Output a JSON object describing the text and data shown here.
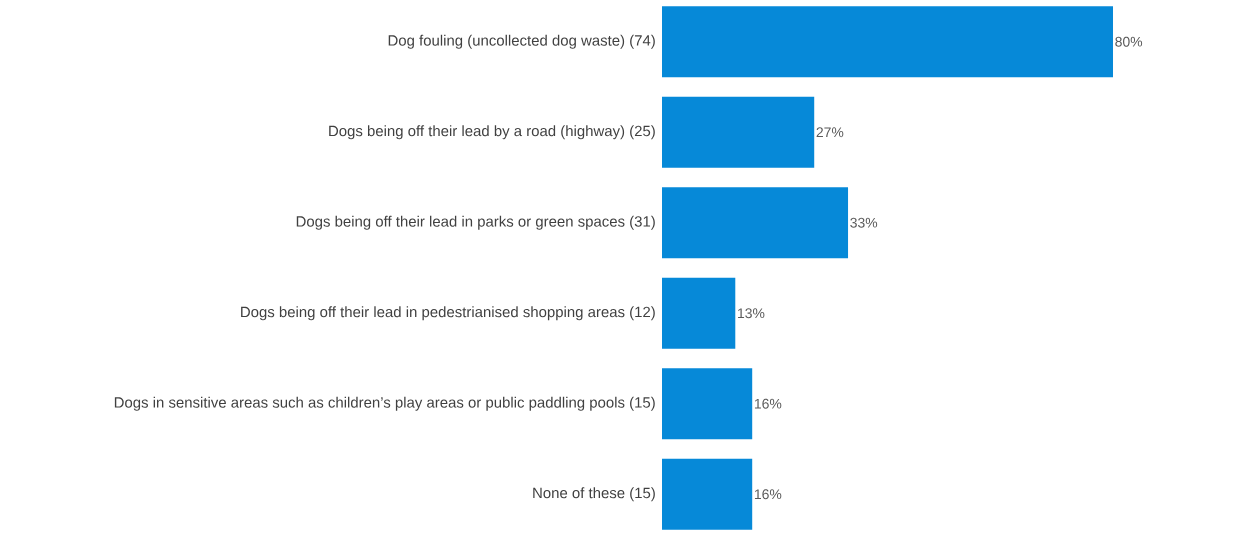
{
  "chart_data": {
    "type": "bar",
    "orientation": "horizontal",
    "categories": [
      "Dog fouling (uncollected dog waste) (74)",
      "Dogs being off their lead by a road (highway) (25)",
      "Dogs being off their lead in parks or green spaces (31)",
      "Dogs being off their lead in pedestrianised shopping areas (12)",
      "Dogs in sensitive areas such as children’s play areas or public paddling pools (15)",
      "None of these (15)"
    ],
    "values": [
      80,
      27,
      33,
      13,
      16,
      16
    ],
    "value_labels": [
      "80%",
      "27%",
      "33%",
      "13%",
      "16%",
      "16%"
    ],
    "color": "#0689d8"
  }
}
